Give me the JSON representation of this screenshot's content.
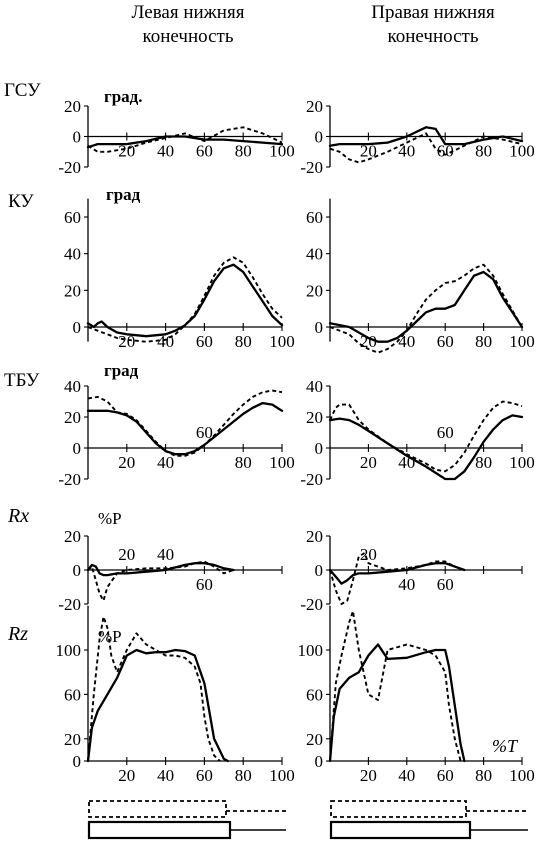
{
  "columns": {
    "left": "Левая нижняя\nконечность",
    "right": "Правая нижняя\nконечность"
  },
  "row_labels": [
    "ГСУ",
    "КУ",
    "ТБУ",
    "Rx",
    "Rz"
  ],
  "unit_labels": [
    "град.",
    "град",
    "град",
    "%P",
    "%P"
  ],
  "x_unit_label": "%T",
  "chart_data": [
    {
      "type": "line",
      "row": 0,
      "col": 0,
      "ylim": [
        -20,
        20
      ],
      "yticks": [
        -20,
        0,
        20
      ],
      "xlim": [
        0,
        100
      ],
      "xticks": [
        20,
        40,
        60,
        80,
        100
      ],
      "xtick_labels": [
        "20",
        "40",
        "60",
        "80",
        "100"
      ],
      "series": [
        {
          "style": "solid",
          "x": [
            0,
            5,
            10,
            20,
            30,
            40,
            50,
            60,
            70,
            80,
            90,
            100
          ],
          "y": [
            -7,
            -5,
            -5,
            -5,
            -3,
            0,
            0,
            -2,
            -2,
            -3,
            -4,
            -5
          ]
        },
        {
          "style": "dashed",
          "x": [
            0,
            5,
            10,
            20,
            30,
            40,
            50,
            60,
            70,
            80,
            90,
            100
          ],
          "y": [
            -6,
            -10,
            -10,
            -8,
            -4,
            -1,
            2,
            -3,
            4,
            6,
            2,
            -4
          ]
        }
      ]
    },
    {
      "type": "line",
      "row": 0,
      "col": 1,
      "ylim": [
        -20,
        20
      ],
      "yticks": [
        -20,
        0,
        20
      ],
      "xlim": [
        0,
        100
      ],
      "xticks": [
        20,
        40,
        60,
        80,
        100
      ],
      "xtick_labels": [
        "20",
        "40",
        "60",
        "80",
        "100"
      ],
      "series": [
        {
          "style": "solid",
          "x": [
            0,
            5,
            10,
            20,
            30,
            40,
            45,
            50,
            55,
            60,
            70,
            80,
            90,
            100
          ],
          "y": [
            -6,
            -5,
            -5,
            -5,
            -4,
            0,
            3,
            6,
            5,
            -5,
            -5,
            -2,
            0,
            -3
          ]
        },
        {
          "style": "dashed",
          "x": [
            0,
            5,
            10,
            15,
            20,
            30,
            40,
            50,
            55,
            60,
            70,
            80,
            90,
            100
          ],
          "y": [
            -8,
            -10,
            -15,
            -17,
            -15,
            -10,
            -4,
            2,
            -8,
            -12,
            -6,
            0,
            -2,
            -5
          ]
        }
      ]
    },
    {
      "type": "line",
      "row": 1,
      "col": 0,
      "ylim": [
        -10,
        70
      ],
      "yticks": [
        0,
        20,
        40,
        60
      ],
      "xlim": [
        0,
        100
      ],
      "xticks": [
        20,
        40,
        60,
        80,
        100
      ],
      "xtick_labels": [
        "20",
        "40",
        "60",
        "80",
        "100"
      ],
      "series": [
        {
          "style": "solid",
          "x": [
            0,
            3,
            5,
            7,
            10,
            15,
            20,
            30,
            40,
            45,
            50,
            55,
            60,
            65,
            70,
            75,
            80,
            85,
            90,
            95,
            100
          ],
          "y": [
            2,
            0,
            2,
            3,
            0,
            -3,
            -4,
            -5,
            -4,
            -2,
            1,
            6,
            15,
            25,
            32,
            34,
            30,
            22,
            14,
            6,
            1
          ]
        },
        {
          "style": "dashed",
          "x": [
            0,
            5,
            10,
            15,
            20,
            30,
            40,
            45,
            50,
            55,
            60,
            65,
            70,
            75,
            80,
            85,
            90,
            95,
            100
          ],
          "y": [
            0,
            -2,
            -4,
            -6,
            -7,
            -8,
            -7,
            -4,
            1,
            7,
            17,
            28,
            35,
            38,
            35,
            27,
            18,
            10,
            5
          ]
        }
      ]
    },
    {
      "type": "line",
      "row": 1,
      "col": 1,
      "ylim": [
        -10,
        70
      ],
      "yticks": [
        0,
        20,
        40,
        60
      ],
      "xlim": [
        0,
        100
      ],
      "xticks": [
        20,
        40,
        60,
        80,
        100
      ],
      "xtick_labels": [
        "20",
        "40",
        "60",
        "80",
        "100"
      ],
      "series": [
        {
          "style": "solid",
          "x": [
            0,
            10,
            20,
            25,
            30,
            35,
            40,
            45,
            50,
            55,
            60,
            65,
            70,
            75,
            80,
            85,
            90,
            95,
            100
          ],
          "y": [
            2,
            0,
            -6,
            -8,
            -8,
            -6,
            -2,
            3,
            8,
            10,
            10,
            12,
            20,
            28,
            30,
            26,
            16,
            8,
            0
          ]
        },
        {
          "style": "dashed",
          "x": [
            0,
            10,
            15,
            20,
            25,
            30,
            35,
            40,
            45,
            50,
            55,
            60,
            65,
            70,
            75,
            80,
            85,
            90,
            95,
            100
          ],
          "y": [
            0,
            -4,
            -9,
            -12,
            -14,
            -12,
            -8,
            -2,
            7,
            15,
            20,
            24,
            25,
            28,
            32,
            34,
            28,
            18,
            9,
            0
          ]
        }
      ]
    },
    {
      "type": "line",
      "row": 2,
      "col": 0,
      "ylim": [
        -20,
        40
      ],
      "yticks": [
        -20,
        0,
        20,
        40
      ],
      "xlim": [
        0,
        100
      ],
      "xticks": [
        20,
        40,
        60,
        80,
        100
      ],
      "xtick_labels": [
        "20",
        "40",
        "60",
        "80",
        "100"
      ],
      "series": [
        {
          "style": "solid",
          "x": [
            0,
            10,
            15,
            20,
            25,
            30,
            35,
            40,
            45,
            50,
            55,
            60,
            65,
            70,
            75,
            80,
            85,
            90,
            95,
            100
          ],
          "y": [
            24,
            24,
            23,
            21,
            17,
            10,
            3,
            -2,
            -4,
            -4,
            -2,
            2,
            7,
            12,
            17,
            22,
            26,
            29,
            28,
            24
          ]
        },
        {
          "style": "dashed",
          "x": [
            0,
            5,
            10,
            15,
            20,
            25,
            30,
            35,
            40,
            45,
            50,
            55,
            60,
            65,
            70,
            75,
            80,
            85,
            90,
            95,
            100
          ],
          "y": [
            32,
            33,
            30,
            23,
            22,
            18,
            11,
            4,
            -2,
            -5,
            -5,
            -3,
            2,
            8,
            15,
            22,
            28,
            33,
            36,
            37,
            36
          ]
        }
      ]
    },
    {
      "type": "line",
      "row": 2,
      "col": 1,
      "ylim": [
        -20,
        40
      ],
      "yticks": [
        -20,
        0,
        20,
        40
      ],
      "xlim": [
        0,
        100
      ],
      "xticks": [
        20,
        40,
        60,
        80,
        100
      ],
      "xtick_labels": [
        "20",
        "40",
        "60",
        "80",
        "100"
      ],
      "series": [
        {
          "style": "solid",
          "x": [
            0,
            5,
            10,
            15,
            20,
            30,
            40,
            50,
            55,
            60,
            65,
            70,
            75,
            80,
            85,
            90,
            95,
            100
          ],
          "y": [
            18,
            19,
            18,
            15,
            11,
            3,
            -5,
            -12,
            -16,
            -20,
            -20,
            -15,
            -6,
            4,
            12,
            18,
            21,
            20
          ]
        },
        {
          "style": "dashed",
          "x": [
            0,
            3,
            5,
            10,
            15,
            20,
            30,
            40,
            50,
            55,
            60,
            65,
            70,
            75,
            80,
            85,
            90,
            95,
            100
          ],
          "y": [
            18,
            26,
            28,
            28,
            18,
            12,
            3,
            -4,
            -10,
            -14,
            -15,
            -11,
            -3,
            8,
            18,
            26,
            30,
            29,
            27
          ]
        }
      ]
    },
    {
      "type": "line",
      "row": 3,
      "col": 0,
      "ylim": [
        -20,
        20
      ],
      "yticks": [
        -20,
        0,
        20
      ],
      "xlim": [
        0,
        100
      ],
      "xticks": [
        20,
        40,
        60
      ],
      "xtick_labels": [
        "20",
        "40",
        "60"
      ],
      "series": [
        {
          "style": "solid",
          "x": [
            0,
            2,
            4,
            6,
            8,
            10,
            15,
            20,
            30,
            40,
            50,
            55,
            60,
            65,
            70,
            75
          ],
          "y": [
            0,
            3,
            2,
            -2,
            -3,
            -3,
            -2,
            -2,
            -1,
            0,
            3,
            4,
            4,
            3,
            1,
            0
          ]
        },
        {
          "style": "dashed",
          "x": [
            0,
            2,
            4,
            6,
            8,
            10,
            15,
            20,
            30,
            40,
            50,
            55,
            60,
            65,
            70,
            75
          ],
          "y": [
            0,
            2,
            -6,
            -14,
            -18,
            -10,
            -2,
            0,
            1,
            1,
            2,
            4,
            5,
            2,
            -2,
            0
          ]
        }
      ]
    },
    {
      "type": "line",
      "row": 3,
      "col": 1,
      "ylim": [
        -20,
        20
      ],
      "yticks": [
        -20,
        0,
        20
      ],
      "xlim": [
        0,
        100
      ],
      "xticks": [
        20,
        40,
        60
      ],
      "xtick_labels": [
        "20",
        "40",
        "60"
      ],
      "series": [
        {
          "style": "solid",
          "x": [
            0,
            3,
            6,
            9,
            12,
            15,
            20,
            30,
            40,
            50,
            55,
            60,
            65,
            70
          ],
          "y": [
            0,
            -4,
            -8,
            -6,
            -3,
            -2,
            -2,
            -1,
            0,
            3,
            4,
            4,
            2,
            0
          ]
        },
        {
          "style": "dashed",
          "x": [
            0,
            3,
            6,
            9,
            12,
            15,
            18,
            20,
            30,
            40,
            50,
            55,
            60,
            65,
            70
          ],
          "y": [
            0,
            -12,
            -20,
            -18,
            -6,
            8,
            10,
            4,
            0,
            1,
            3,
            5,
            5,
            2,
            0
          ]
        }
      ]
    },
    {
      "type": "line",
      "row": 4,
      "col": 0,
      "ylim": [
        0,
        140
      ],
      "yticks": [
        0,
        20,
        60,
        100
      ],
      "xlim": [
        0,
        100
      ],
      "xticks": [
        20,
        40,
        60,
        80,
        100
      ],
      "xtick_labels": [
        "20",
        "40",
        "60",
        "80",
        "100"
      ],
      "series": [
        {
          "style": "solid",
          "x": [
            0,
            2,
            5,
            10,
            15,
            20,
            25,
            30,
            35,
            40,
            45,
            50,
            55,
            60,
            62,
            65,
            70,
            72
          ],
          "y": [
            0,
            30,
            45,
            60,
            75,
            95,
            100,
            97,
            98,
            98,
            100,
            99,
            95,
            70,
            50,
            20,
            2,
            0
          ]
        },
        {
          "style": "dashed",
          "x": [
            0,
            3,
            6,
            8,
            10,
            12,
            15,
            20,
            25,
            30,
            35,
            40,
            45,
            50,
            55,
            58,
            60,
            62,
            65,
            68
          ],
          "y": [
            0,
            60,
            110,
            130,
            120,
            95,
            80,
            100,
            115,
            105,
            100,
            95,
            95,
            93,
            85,
            70,
            40,
            20,
            5,
            0
          ]
        }
      ]
    },
    {
      "type": "line",
      "row": 4,
      "col": 1,
      "ylim": [
        0,
        140
      ],
      "yticks": [
        0,
        20,
        60,
        100
      ],
      "xlim": [
        0,
        100
      ],
      "xticks": [
        20,
        40,
        60,
        80,
        100
      ],
      "xtick_labels": [
        "20",
        "40",
        "60",
        "80",
        "100"
      ],
      "series": [
        {
          "style": "solid",
          "x": [
            0,
            2,
            5,
            10,
            15,
            20,
            25,
            30,
            40,
            50,
            55,
            60,
            62,
            65,
            68,
            70
          ],
          "y": [
            0,
            40,
            65,
            75,
            80,
            95,
            105,
            92,
            93,
            98,
            100,
            100,
            85,
            50,
            15,
            0
          ]
        },
        {
          "style": "dashed",
          "x": [
            0,
            3,
            6,
            10,
            12,
            15,
            20,
            25,
            30,
            40,
            50,
            55,
            60,
            62,
            65,
            68
          ],
          "y": [
            0,
            70,
            95,
            125,
            135,
            100,
            60,
            55,
            100,
            105,
            100,
            95,
            80,
            50,
            20,
            0
          ]
        }
      ]
    }
  ]
}
